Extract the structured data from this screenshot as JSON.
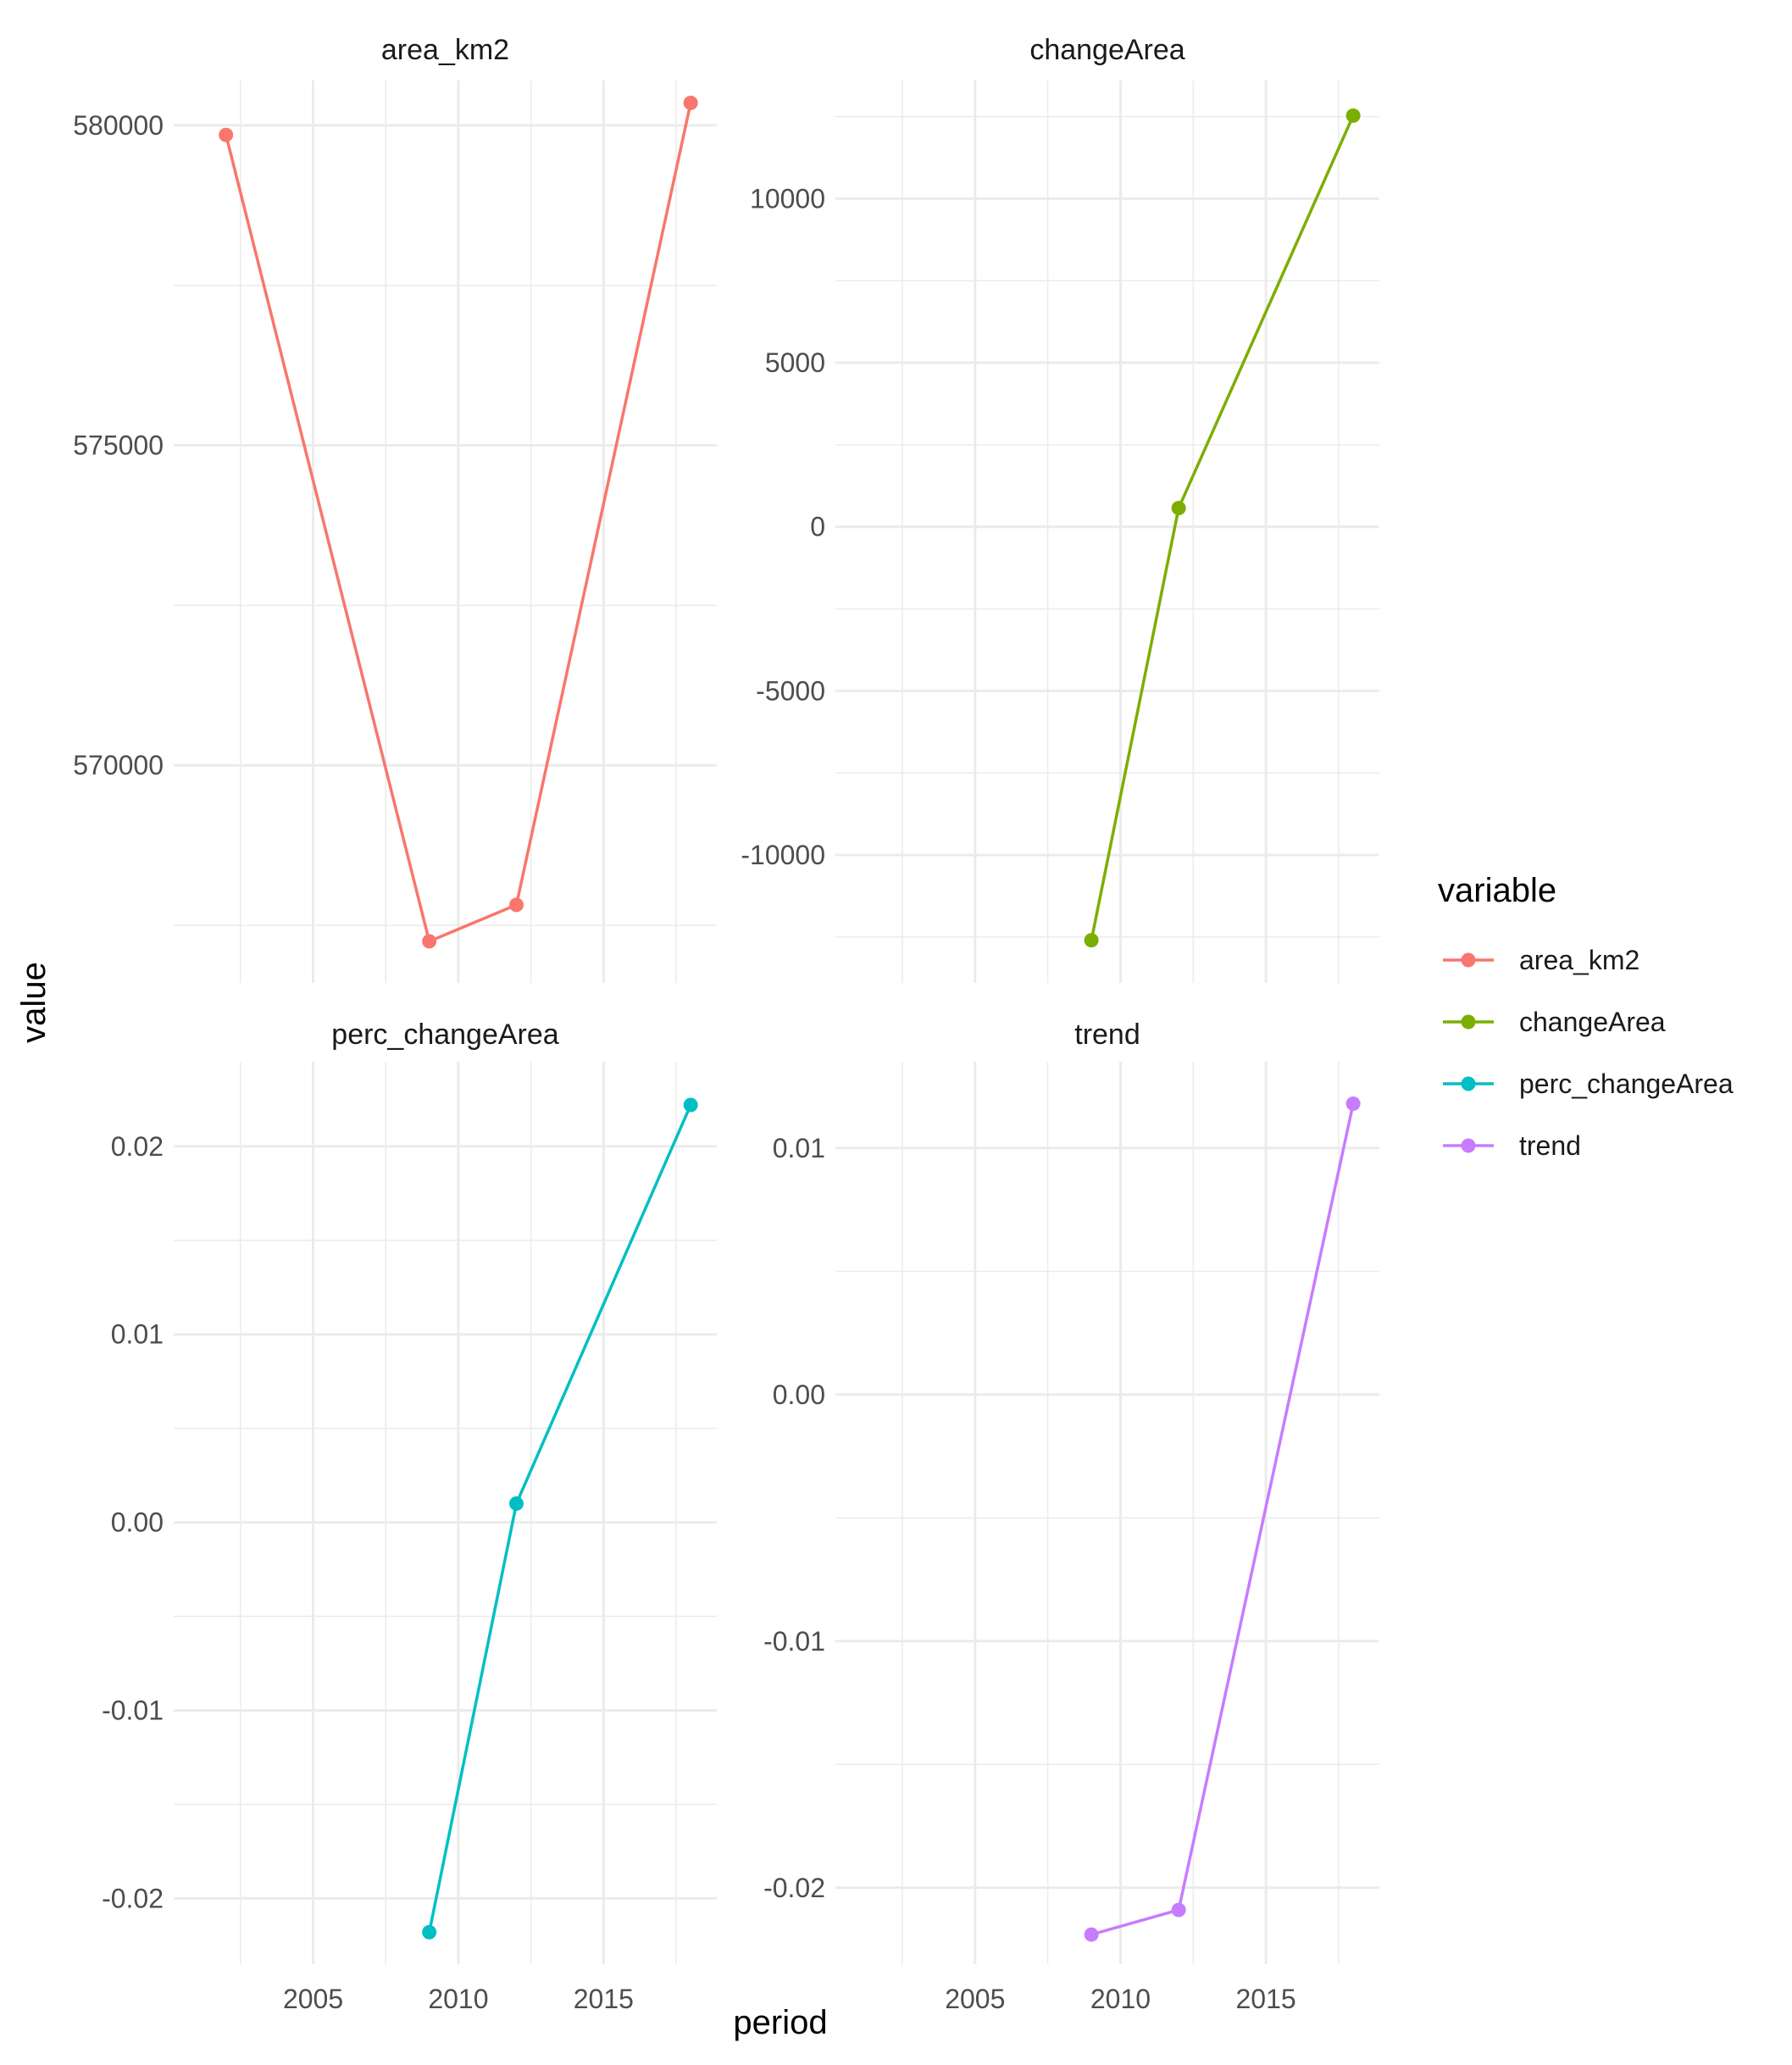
{
  "chart_data": {
    "type": "line",
    "facets": [
      {
        "strip": "area_km2",
        "x": [
          2002,
          2009,
          2012,
          2018
        ],
        "y": [
          579850,
          567250,
          567820,
          580350
        ],
        "y_ticks": [
          570000,
          575000,
          580000
        ],
        "y_tick_labels": [
          "570000",
          "575000",
          "580000"
        ],
        "ylim": [
          566600,
          580700
        ]
      },
      {
        "strip": "changeArea",
        "x": [
          2009,
          2012,
          2018
        ],
        "y": [
          -12600,
          570,
          12530
        ],
        "y_ticks": [
          -10000,
          -5000,
          0,
          5000,
          10000
        ],
        "y_tick_labels": [
          "-10000",
          "-5000",
          "0",
          "5000",
          "10000"
        ],
        "ylim": [
          -13900,
          13600
        ]
      },
      {
        "strip": "perc_changeArea",
        "x": [
          2009,
          2012,
          2018
        ],
        "y": [
          -0.0218,
          0.001,
          0.0222
        ],
        "y_ticks": [
          -0.02,
          -0.01,
          0.0,
          0.01,
          0.02
        ],
        "y_tick_labels": [
          "-0.02",
          "-0.01",
          "0.00",
          "0.01",
          "0.02"
        ],
        "ylim": [
          -0.0235,
          0.0245
        ]
      },
      {
        "strip": "trend",
        "x": [
          2009,
          2012,
          2018
        ],
        "y": [
          -0.0219,
          -0.0209,
          0.0118
        ],
        "y_ticks": [
          -0.02,
          -0.01,
          0.0,
          0.01
        ],
        "y_tick_labels": [
          "-0.02",
          "-0.01",
          "0.00",
          "0.01"
        ],
        "ylim": [
          -0.0231,
          0.0135
        ]
      }
    ],
    "x_ticks": [
      2005,
      2010,
      2015
    ],
    "x_tick_labels": [
      "2005",
      "2010",
      "2015"
    ],
    "xlim": [
      2000.2,
      2018.9
    ],
    "xlabel": "period",
    "ylabel": "value",
    "legend": {
      "title": "variable",
      "placement": "right",
      "entries": [
        "area_km2",
        "changeArea",
        "perc_changeArea",
        "trend"
      ]
    },
    "colors": {
      "area_km2": "#F8766D",
      "changeArea": "#7CAE00",
      "perc_changeArea": "#00BFC4",
      "trend": "#C77CFF"
    },
    "grid": true
  }
}
